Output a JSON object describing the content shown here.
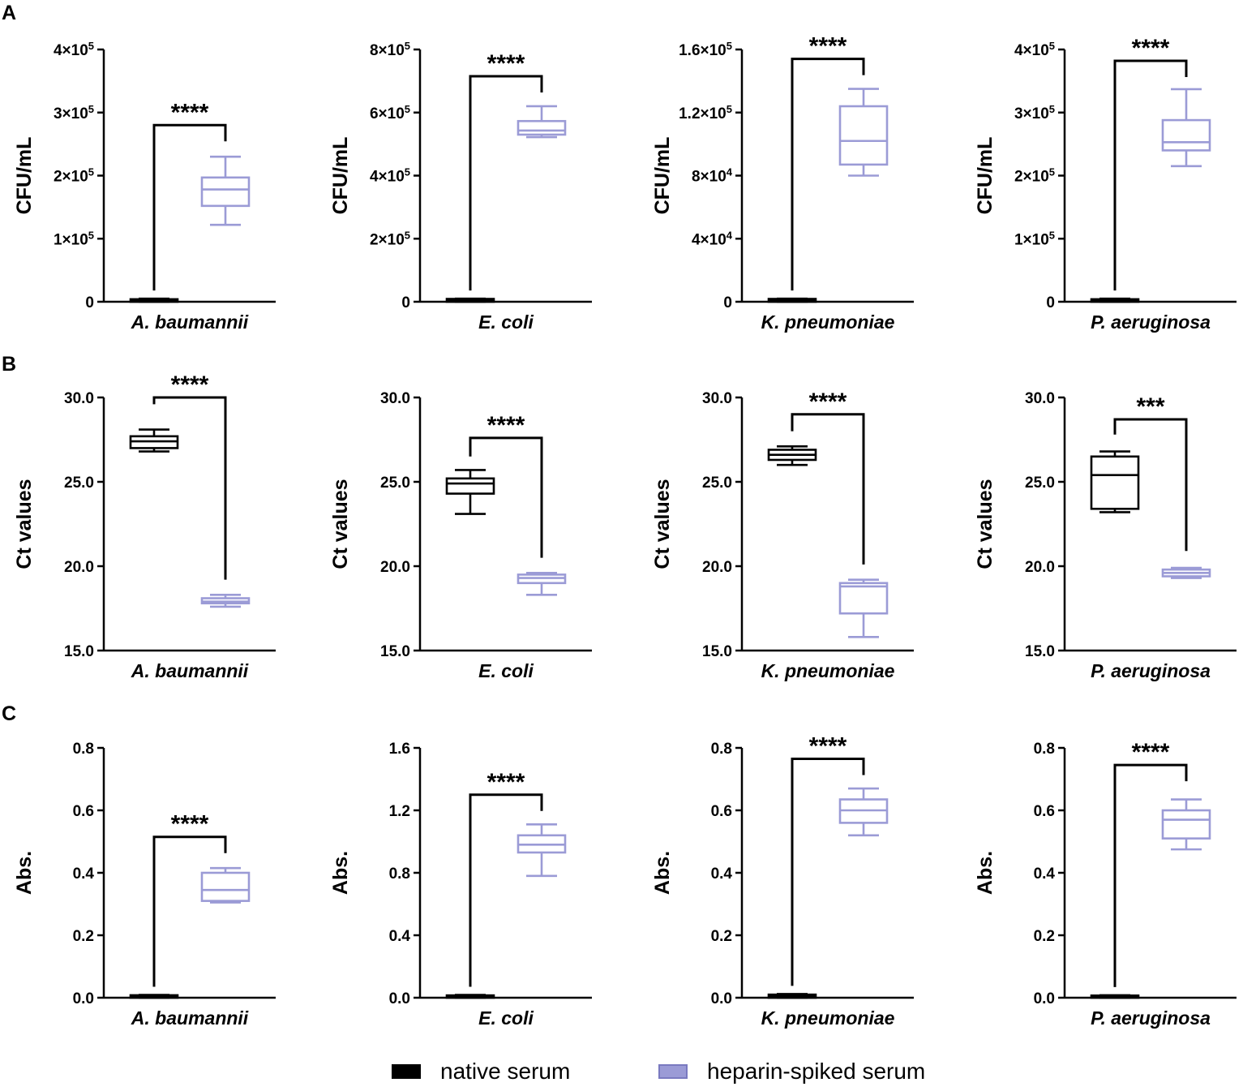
{
  "colors": {
    "native": "#000000",
    "heparin": "#9b9bd6",
    "axis": "#000000"
  },
  "panels": {
    "A": "A",
    "B": "B",
    "C": "C"
  },
  "legend": {
    "native": "native serum",
    "heparin": "heparin-spiked serum"
  },
  "chart_data": [
    {
      "id": "A1",
      "panel": "A",
      "type": "box",
      "title": "",
      "xlabel": "A. baumannii",
      "ylabel": "CFU/mL",
      "ylim": [
        0,
        400000
      ],
      "ticks": [
        0,
        100000,
        200000,
        300000,
        400000
      ],
      "tick_labels": [
        "0",
        "1×10",
        "2×10",
        "3×10",
        "4×10"
      ],
      "tick_exps": [
        "",
        "5",
        "5",
        "5",
        "5"
      ],
      "series": [
        {
          "name": "native serum",
          "min": 0,
          "q1": 0,
          "median": 2000,
          "q3": 4000,
          "max": 5000
        },
        {
          "name": "heparin-spiked serum",
          "min": 122000,
          "q1": 152000,
          "median": 178000,
          "q3": 197000,
          "max": 230000
        }
      ],
      "significance": {
        "label": "****",
        "y": 280000
      }
    },
    {
      "id": "A2",
      "panel": "A",
      "type": "box",
      "title": "",
      "xlabel": "E. coli",
      "ylabel": "CFU/mL",
      "ylim": [
        0,
        800000
      ],
      "ticks": [
        0,
        200000,
        400000,
        600000,
        800000
      ],
      "tick_labels": [
        "0",
        "2×10",
        "4×10",
        "6×10",
        "8×10"
      ],
      "tick_exps": [
        "",
        "5",
        "5",
        "5",
        "5"
      ],
      "series": [
        {
          "name": "native serum",
          "min": 0,
          "q1": 0,
          "median": 5000,
          "q3": 9000,
          "max": 10000
        },
        {
          "name": "heparin-spiked serum",
          "min": 522000,
          "q1": 530000,
          "median": 543000,
          "q3": 573000,
          "max": 620000
        }
      ],
      "significance": {
        "label": "****",
        "y": 715000
      }
    },
    {
      "id": "A3",
      "panel": "A",
      "type": "box",
      "title": "",
      "xlabel": "K. pneumoniae",
      "ylabel": "CFU/mL",
      "ylim": [
        0,
        160000
      ],
      "ticks": [
        0,
        40000,
        80000,
        120000,
        160000
      ],
      "tick_labels": [
        "0",
        "4×10",
        "8×10",
        "1.2×10",
        "1.6×10"
      ],
      "tick_exps": [
        "",
        "4",
        "4",
        "5",
        "5"
      ],
      "series": [
        {
          "name": "native serum",
          "min": 0,
          "q1": 0,
          "median": 1000,
          "q3": 1800,
          "max": 2000
        },
        {
          "name": "heparin-spiked serum",
          "min": 80000,
          "q1": 87000,
          "median": 102000,
          "q3": 124000,
          "max": 135000
        }
      ],
      "significance": {
        "label": "****",
        "y": 154000
      }
    },
    {
      "id": "A4",
      "panel": "A",
      "type": "box",
      "title": "",
      "xlabel": "P. aeruginosa",
      "ylabel": "CFU/mL",
      "ylim": [
        0,
        400000
      ],
      "ticks": [
        0,
        100000,
        200000,
        300000,
        400000
      ],
      "tick_labels": [
        "0",
        "1×10",
        "2×10",
        "3×10",
        "4×10"
      ],
      "tick_exps": [
        "",
        "5",
        "5",
        "5",
        "5"
      ],
      "series": [
        {
          "name": "native serum",
          "min": 0,
          "q1": 0,
          "median": 2000,
          "q3": 4000,
          "max": 5000
        },
        {
          "name": "heparin-spiked serum",
          "min": 215000,
          "q1": 240000,
          "median": 253000,
          "q3": 288000,
          "max": 337000
        }
      ],
      "significance": {
        "label": "****",
        "y": 382000
      }
    },
    {
      "id": "B1",
      "panel": "B",
      "type": "box",
      "title": "",
      "xlabel": "A. baumannii",
      "ylabel": "Ct values",
      "ylim": [
        15,
        30
      ],
      "ticks": [
        15,
        20,
        25,
        30
      ],
      "tick_labels": [
        "15.0",
        "20.0",
        "25.0",
        "30.0"
      ],
      "tick_exps": [
        "",
        "",
        "",
        ""
      ],
      "series": [
        {
          "name": "native serum",
          "min": 26.8,
          "q1": 27.0,
          "median": 27.4,
          "q3": 27.7,
          "max": 28.1
        },
        {
          "name": "heparin-spiked serum",
          "min": 17.6,
          "q1": 17.8,
          "median": 17.9,
          "q3": 18.1,
          "max": 18.3
        }
      ],
      "significance": {
        "label": "****",
        "y": 30.0,
        "drop_left": 29.6,
        "drop_right": 19.2
      }
    },
    {
      "id": "B2",
      "panel": "B",
      "type": "box",
      "title": "",
      "xlabel": "E. coli",
      "ylabel": "Ct values",
      "ylim": [
        15,
        30
      ],
      "ticks": [
        15,
        20,
        25,
        30
      ],
      "tick_labels": [
        "15.0",
        "20.0",
        "25.0",
        "30.0"
      ],
      "tick_exps": [
        "",
        "",
        "",
        ""
      ],
      "series": [
        {
          "name": "native serum",
          "min": 23.1,
          "q1": 24.3,
          "median": 24.9,
          "q3": 25.2,
          "max": 25.7
        },
        {
          "name": "heparin-spiked serum",
          "min": 18.3,
          "q1": 19.0,
          "median": 19.3,
          "q3": 19.5,
          "max": 19.6
        }
      ],
      "significance": {
        "label": "****",
        "y": 27.6,
        "drop_left": 26.5,
        "drop_right": 20.5
      }
    },
    {
      "id": "B3",
      "panel": "B",
      "type": "box",
      "title": "",
      "xlabel": "K. pneumoniae",
      "ylabel": "Ct values",
      "ylim": [
        15,
        30
      ],
      "ticks": [
        15,
        20,
        25,
        30
      ],
      "tick_labels": [
        "15.0",
        "20.0",
        "25.0",
        "30.0"
      ],
      "tick_exps": [
        "",
        "",
        "",
        ""
      ],
      "series": [
        {
          "name": "native serum",
          "min": 26.0,
          "q1": 26.3,
          "median": 26.6,
          "q3": 26.9,
          "max": 27.1
        },
        {
          "name": "heparin-spiked serum",
          "min": 15.8,
          "q1": 17.2,
          "median": 18.8,
          "q3": 19.0,
          "max": 19.2
        }
      ],
      "significance": {
        "label": "****",
        "y": 29.0,
        "drop_left": 28.0,
        "drop_right": 20.1
      }
    },
    {
      "id": "B4",
      "panel": "B",
      "type": "box",
      "title": "",
      "xlabel": "P. aeruginosa",
      "ylabel": "Ct values",
      "ylim": [
        15,
        30
      ],
      "ticks": [
        15,
        20,
        25,
        30
      ],
      "tick_labels": [
        "15.0",
        "20.0",
        "25.0",
        "30.0"
      ],
      "tick_exps": [
        "",
        "",
        "",
        ""
      ],
      "series": [
        {
          "name": "native serum",
          "min": 23.2,
          "q1": 23.4,
          "median": 25.4,
          "q3": 26.5,
          "max": 26.8
        },
        {
          "name": "heparin-spiked serum",
          "min": 19.3,
          "q1": 19.4,
          "median": 19.6,
          "q3": 19.8,
          "max": 19.9
        }
      ],
      "significance": {
        "label": "***",
        "y": 28.7,
        "drop_left": 27.8,
        "drop_right": 20.9
      }
    },
    {
      "id": "C1",
      "panel": "C",
      "type": "box",
      "title": "",
      "xlabel": "A. baumannii",
      "ylabel": "Abs.",
      "ylim": [
        0,
        0.8
      ],
      "ticks": [
        0,
        0.2,
        0.4,
        0.6,
        0.8
      ],
      "tick_labels": [
        "0.0",
        "0.2",
        "0.4",
        "0.6",
        "0.8"
      ],
      "tick_exps": [
        "",
        "",
        "",
        "",
        ""
      ],
      "series": [
        {
          "name": "native serum",
          "min": 0.0,
          "q1": 0.0,
          "median": 0.005,
          "q3": 0.008,
          "max": 0.009
        },
        {
          "name": "heparin-spiked serum",
          "min": 0.305,
          "q1": 0.31,
          "median": 0.345,
          "q3": 0.4,
          "max": 0.415
        }
      ],
      "significance": {
        "label": "****",
        "y": 0.515
      }
    },
    {
      "id": "C2",
      "panel": "C",
      "type": "box",
      "title": "",
      "xlabel": "E. coli",
      "ylabel": "Abs.",
      "ylim": [
        0,
        1.6
      ],
      "ticks": [
        0,
        0.4,
        0.8,
        1.2,
        1.6
      ],
      "tick_labels": [
        "0.0",
        "0.4",
        "0.8",
        "1.2",
        "1.6"
      ],
      "tick_exps": [
        "",
        "",
        "",
        "",
        ""
      ],
      "series": [
        {
          "name": "native serum",
          "min": 0.0,
          "q1": 0.0,
          "median": 0.008,
          "q3": 0.015,
          "max": 0.018
        },
        {
          "name": "heparin-spiked serum",
          "min": 0.78,
          "q1": 0.93,
          "median": 0.98,
          "q3": 1.04,
          "max": 1.11
        }
      ],
      "significance": {
        "label": "****",
        "y": 1.3
      }
    },
    {
      "id": "C3",
      "panel": "C",
      "type": "box",
      "title": "",
      "xlabel": "K. pneumoniae",
      "ylabel": "Abs.",
      "ylim": [
        0,
        0.8
      ],
      "ticks": [
        0,
        0.2,
        0.4,
        0.6,
        0.8
      ],
      "tick_labels": [
        "0.0",
        "0.2",
        "0.4",
        "0.6",
        "0.8"
      ],
      "tick_exps": [
        "",
        "",
        "",
        "",
        ""
      ],
      "series": [
        {
          "name": "native serum",
          "min": 0.0,
          "q1": 0.0,
          "median": 0.006,
          "q3": 0.01,
          "max": 0.012
        },
        {
          "name": "heparin-spiked serum",
          "min": 0.52,
          "q1": 0.56,
          "median": 0.6,
          "q3": 0.635,
          "max": 0.67
        }
      ],
      "significance": {
        "label": "****",
        "y": 0.765
      }
    },
    {
      "id": "C4",
      "panel": "C",
      "type": "box",
      "title": "",
      "xlabel": "P. aeruginosa",
      "ylabel": "Abs.",
      "ylim": [
        0,
        0.8
      ],
      "ticks": [
        0,
        0.2,
        0.4,
        0.6,
        0.8
      ],
      "tick_labels": [
        "0.0",
        "0.2",
        "0.4",
        "0.6",
        "0.8"
      ],
      "tick_exps": [
        "",
        "",
        "",
        "",
        ""
      ],
      "series": [
        {
          "name": "native serum",
          "min": 0.0,
          "q1": 0.0,
          "median": 0.004,
          "q3": 0.007,
          "max": 0.008
        },
        {
          "name": "heparin-spiked serum",
          "min": 0.475,
          "q1": 0.51,
          "median": 0.57,
          "q3": 0.6,
          "max": 0.635
        }
      ],
      "significance": {
        "label": "****",
        "y": 0.745
      }
    }
  ]
}
